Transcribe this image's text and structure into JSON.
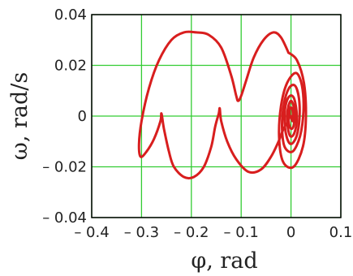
{
  "chart_data": {
    "type": "line",
    "title": "",
    "xlabel": "φ, rad",
    "ylabel": "ω, rad/s",
    "xlim": [
      -0.4,
      0.1
    ],
    "ylim": [
      -0.04,
      0.04
    ],
    "x_ticks": [
      -0.4,
      -0.3,
      -0.2,
      -0.1,
      0,
      0.1
    ],
    "y_ticks": [
      0.04,
      0.02,
      0,
      -0.02,
      -0.04
    ],
    "x_tick_labels": [
      "– 0.4",
      "– 0.3",
      "– 0.2",
      "– 0.1",
      "0",
      "0.1"
    ],
    "y_tick_labels": [
      "0.04",
      "0.02",
      "0",
      "– 0.02",
      "– 0.04"
    ],
    "grid": true,
    "colors": {
      "line": "#d81e1e",
      "grid": "#33cc33",
      "frame": "#000000"
    },
    "series": [
      {
        "x": [
          -0.005,
          0.012,
          0.026,
          0.03,
          0.024,
          0.005,
          -0.016,
          -0.024,
          -0.02,
          -0.008,
          0.01,
          0.022,
          0.025,
          0.018,
          0.003,
          -0.013,
          -0.018,
          -0.014,
          -0.004,
          0.008,
          0.016,
          0.017,
          0.011,
          0.0,
          -0.009,
          -0.013,
          -0.01,
          -0.002,
          0.006,
          0.011,
          0.011,
          0.006,
          -0.001,
          -0.006,
          -0.008,
          -0.005,
          0.0,
          0.005,
          0.007,
          0.005,
          0.0,
          -0.004,
          -0.005,
          -0.002,
          0.002,
          0.004,
          0.003,
          0.0
        ],
        "y": [
          0.025,
          0.022,
          0.013,
          0.0,
          -0.012,
          -0.02,
          -0.018,
          -0.008,
          0.004,
          0.013,
          0.017,
          0.012,
          0.002,
          -0.008,
          -0.014,
          -0.012,
          -0.004,
          0.005,
          0.011,
          0.012,
          0.007,
          -0.001,
          -0.008,
          -0.011,
          -0.008,
          -0.001,
          0.005,
          0.008,
          0.007,
          0.002,
          -0.003,
          -0.007,
          -0.008,
          -0.005,
          0.0,
          0.004,
          0.006,
          0.004,
          0.0,
          -0.004,
          -0.005,
          -0.003,
          0.001,
          0.003,
          0.003,
          0.0,
          -0.002,
          0.0
        ]
      },
      {
        "x": [
          -0.005,
          -0.02,
          -0.035,
          -0.055,
          -0.075,
          -0.09,
          -0.1,
          -0.106,
          -0.11,
          -0.12,
          -0.14,
          -0.165,
          -0.19,
          -0.215,
          -0.24,
          -0.265,
          -0.285,
          -0.3,
          -0.305,
          -0.302,
          -0.29,
          -0.275,
          -0.262,
          -0.26,
          -0.255,
          -0.245,
          -0.235,
          -0.215,
          -0.195,
          -0.175,
          -0.16,
          -0.152,
          -0.145,
          -0.143,
          -0.14,
          -0.128,
          -0.11,
          -0.085,
          -0.06,
          -0.04,
          -0.025,
          -0.015,
          -0.006,
          -0.003,
          -0.004
        ],
        "y": [
          0.025,
          0.031,
          0.033,
          0.03,
          0.023,
          0.014,
          0.008,
          0.006,
          0.008,
          0.016,
          0.027,
          0.032,
          0.033,
          0.033,
          0.03,
          0.022,
          0.011,
          -0.002,
          -0.011,
          -0.016,
          -0.014,
          -0.009,
          -0.002,
          0.001,
          -0.005,
          -0.014,
          -0.02,
          -0.024,
          -0.024,
          -0.02,
          -0.012,
          -0.004,
          0.001,
          0.003,
          -0.002,
          -0.01,
          -0.017,
          -0.022,
          -0.021,
          -0.016,
          -0.01,
          -0.005,
          -0.002,
          0.0,
          0.004
        ]
      }
    ]
  }
}
